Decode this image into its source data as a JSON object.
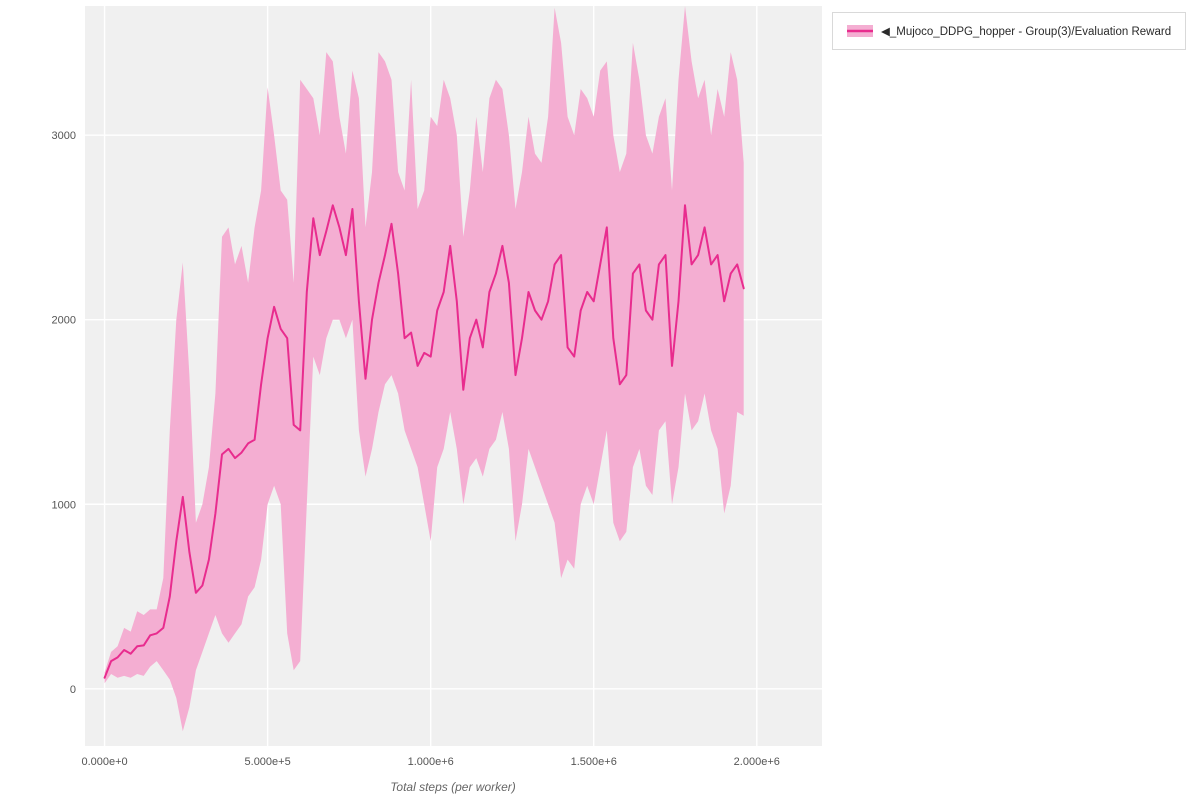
{
  "legend": {
    "items": [
      {
        "label": "◀_Mujoco_DDPG_hopper - Group(3)/Evaluation Reward"
      }
    ]
  },
  "chart_data": {
    "type": "line",
    "title": "",
    "xlabel": "Total steps (per worker)",
    "ylabel": "",
    "legend_position": "top-right",
    "grid": true,
    "xlim": [
      -60000,
      2200000
    ],
    "ylim": [
      -310,
      3700
    ],
    "x_ticks": {
      "values": [
        0,
        500000,
        1000000,
        1500000,
        2000000
      ],
      "labels": [
        "0.000e+0",
        "5.000e+5",
        "1.000e+6",
        "1.500e+6",
        "2.000e+6"
      ]
    },
    "y_ticks": {
      "values": [
        0,
        1000,
        2000,
        3000
      ],
      "labels": [
        "0",
        "1000",
        "2000",
        "3000"
      ]
    },
    "colors": {
      "line": "#e82c8e",
      "band": "#f4aed2",
      "plot_background": "#f0f0f0",
      "grid": "#ffffff"
    },
    "x": [
      0,
      20000,
      40000,
      60000,
      80000,
      100000,
      120000,
      140000,
      160000,
      180000,
      200000,
      220000,
      240000,
      260000,
      280000,
      300000,
      320000,
      340000,
      360000,
      380000,
      400000,
      420000,
      440000,
      460000,
      480000,
      500000,
      520000,
      540000,
      560000,
      580000,
      600000,
      620000,
      640000,
      660000,
      680000,
      700000,
      720000,
      740000,
      760000,
      780000,
      800000,
      820000,
      840000,
      860000,
      880000,
      900000,
      920000,
      940000,
      960000,
      980000,
      1000000,
      1020000,
      1040000,
      1060000,
      1080000,
      1100000,
      1120000,
      1140000,
      1160000,
      1180000,
      1200000,
      1220000,
      1240000,
      1260000,
      1280000,
      1300000,
      1320000,
      1340000,
      1360000,
      1380000,
      1400000,
      1420000,
      1440000,
      1460000,
      1480000,
      1500000,
      1520000,
      1540000,
      1560000,
      1580000,
      1600000,
      1620000,
      1640000,
      1660000,
      1680000,
      1700000,
      1720000,
      1740000,
      1760000,
      1780000,
      1800000,
      1820000,
      1840000,
      1860000,
      1880000,
      1900000,
      1920000,
      1940000,
      1960000
    ],
    "series": [
      {
        "name": "◀_Mujoco_DDPG_hopper - Group(3)/Evaluation Reward",
        "mean": [
          60,
          150,
          170,
          210,
          190,
          230,
          235,
          290,
          300,
          330,
          500,
          800,
          1040,
          740,
          520,
          560,
          700,
          950,
          1270,
          1300,
          1250,
          1280,
          1330,
          1350,
          1650,
          1900,
          2070,
          1950,
          1900,
          1430,
          1400,
          2150,
          2550,
          2350,
          2480,
          2620,
          2500,
          2350,
          2600,
          2100,
          1680,
          2000,
          2200,
          2350,
          2520,
          2250,
          1900,
          1930,
          1750,
          1820,
          1800,
          2050,
          2150,
          2400,
          2100,
          1620,
          1900,
          2000,
          1850,
          2150,
          2250,
          2400,
          2200,
          1700,
          1900,
          2150,
          2050,
          2000,
          2100,
          2300,
          2350,
          1850,
          1800,
          2050,
          2150,
          2100,
          2300,
          2500,
          1900,
          1650,
          1700,
          2250,
          2300,
          2050,
          2000,
          2300,
          2350,
          1750,
          2100,
          2620,
          2300,
          2350,
          2500,
          2300,
          2350,
          2100,
          2250,
          2300,
          2170
        ],
        "upper": [
          90,
          200,
          230,
          330,
          310,
          420,
          400,
          430,
          430,
          600,
          1400,
          2000,
          2310,
          1700,
          900,
          1000,
          1200,
          1600,
          2450,
          2500,
          2300,
          2400,
          2200,
          2500,
          2700,
          3260,
          3000,
          2700,
          2650,
          2200,
          3300,
          3250,
          3200,
          3000,
          3450,
          3400,
          3100,
          2900,
          3350,
          3200,
          2500,
          2800,
          3450,
          3400,
          3300,
          2800,
          2700,
          3300,
          2600,
          2700,
          3100,
          3050,
          3300,
          3200,
          3000,
          2450,
          2700,
          3100,
          2800,
          3200,
          3300,
          3250,
          3000,
          2600,
          2800,
          3100,
          2900,
          2850,
          3100,
          3690,
          3500,
          3100,
          3000,
          3250,
          3200,
          3100,
          3350,
          3400,
          3000,
          2800,
          2900,
          3500,
          3300,
          3000,
          2900,
          3100,
          3200,
          2700,
          3300,
          3700,
          3400,
          3200,
          3300,
          3000,
          3250,
          3100,
          3450,
          3300,
          2850
        ],
        "lower": [
          30,
          80,
          60,
          70,
          60,
          80,
          70,
          120,
          150,
          100,
          50,
          -50,
          -230,
          -100,
          100,
          200,
          300,
          400,
          300,
          250,
          300,
          350,
          500,
          550,
          700,
          1000,
          1100,
          1000,
          300,
          100,
          150,
          1000,
          1800,
          1700,
          1900,
          2000,
          2000,
          1900,
          2000,
          1400,
          1150,
          1300,
          1500,
          1650,
          1700,
          1600,
          1400,
          1300,
          1200,
          1000,
          800,
          1200,
          1300,
          1500,
          1300,
          1000,
          1200,
          1250,
          1150,
          1300,
          1350,
          1500,
          1300,
          800,
          1000,
          1300,
          1200,
          1100,
          1000,
          900,
          600,
          700,
          650,
          1000,
          1100,
          1000,
          1200,
          1400,
          900,
          800,
          850,
          1200,
          1300,
          1100,
          1050,
          1400,
          1450,
          1000,
          1200,
          1600,
          1400,
          1450,
          1600,
          1400,
          1300,
          950,
          1100,
          1500,
          1480
        ]
      }
    ]
  }
}
